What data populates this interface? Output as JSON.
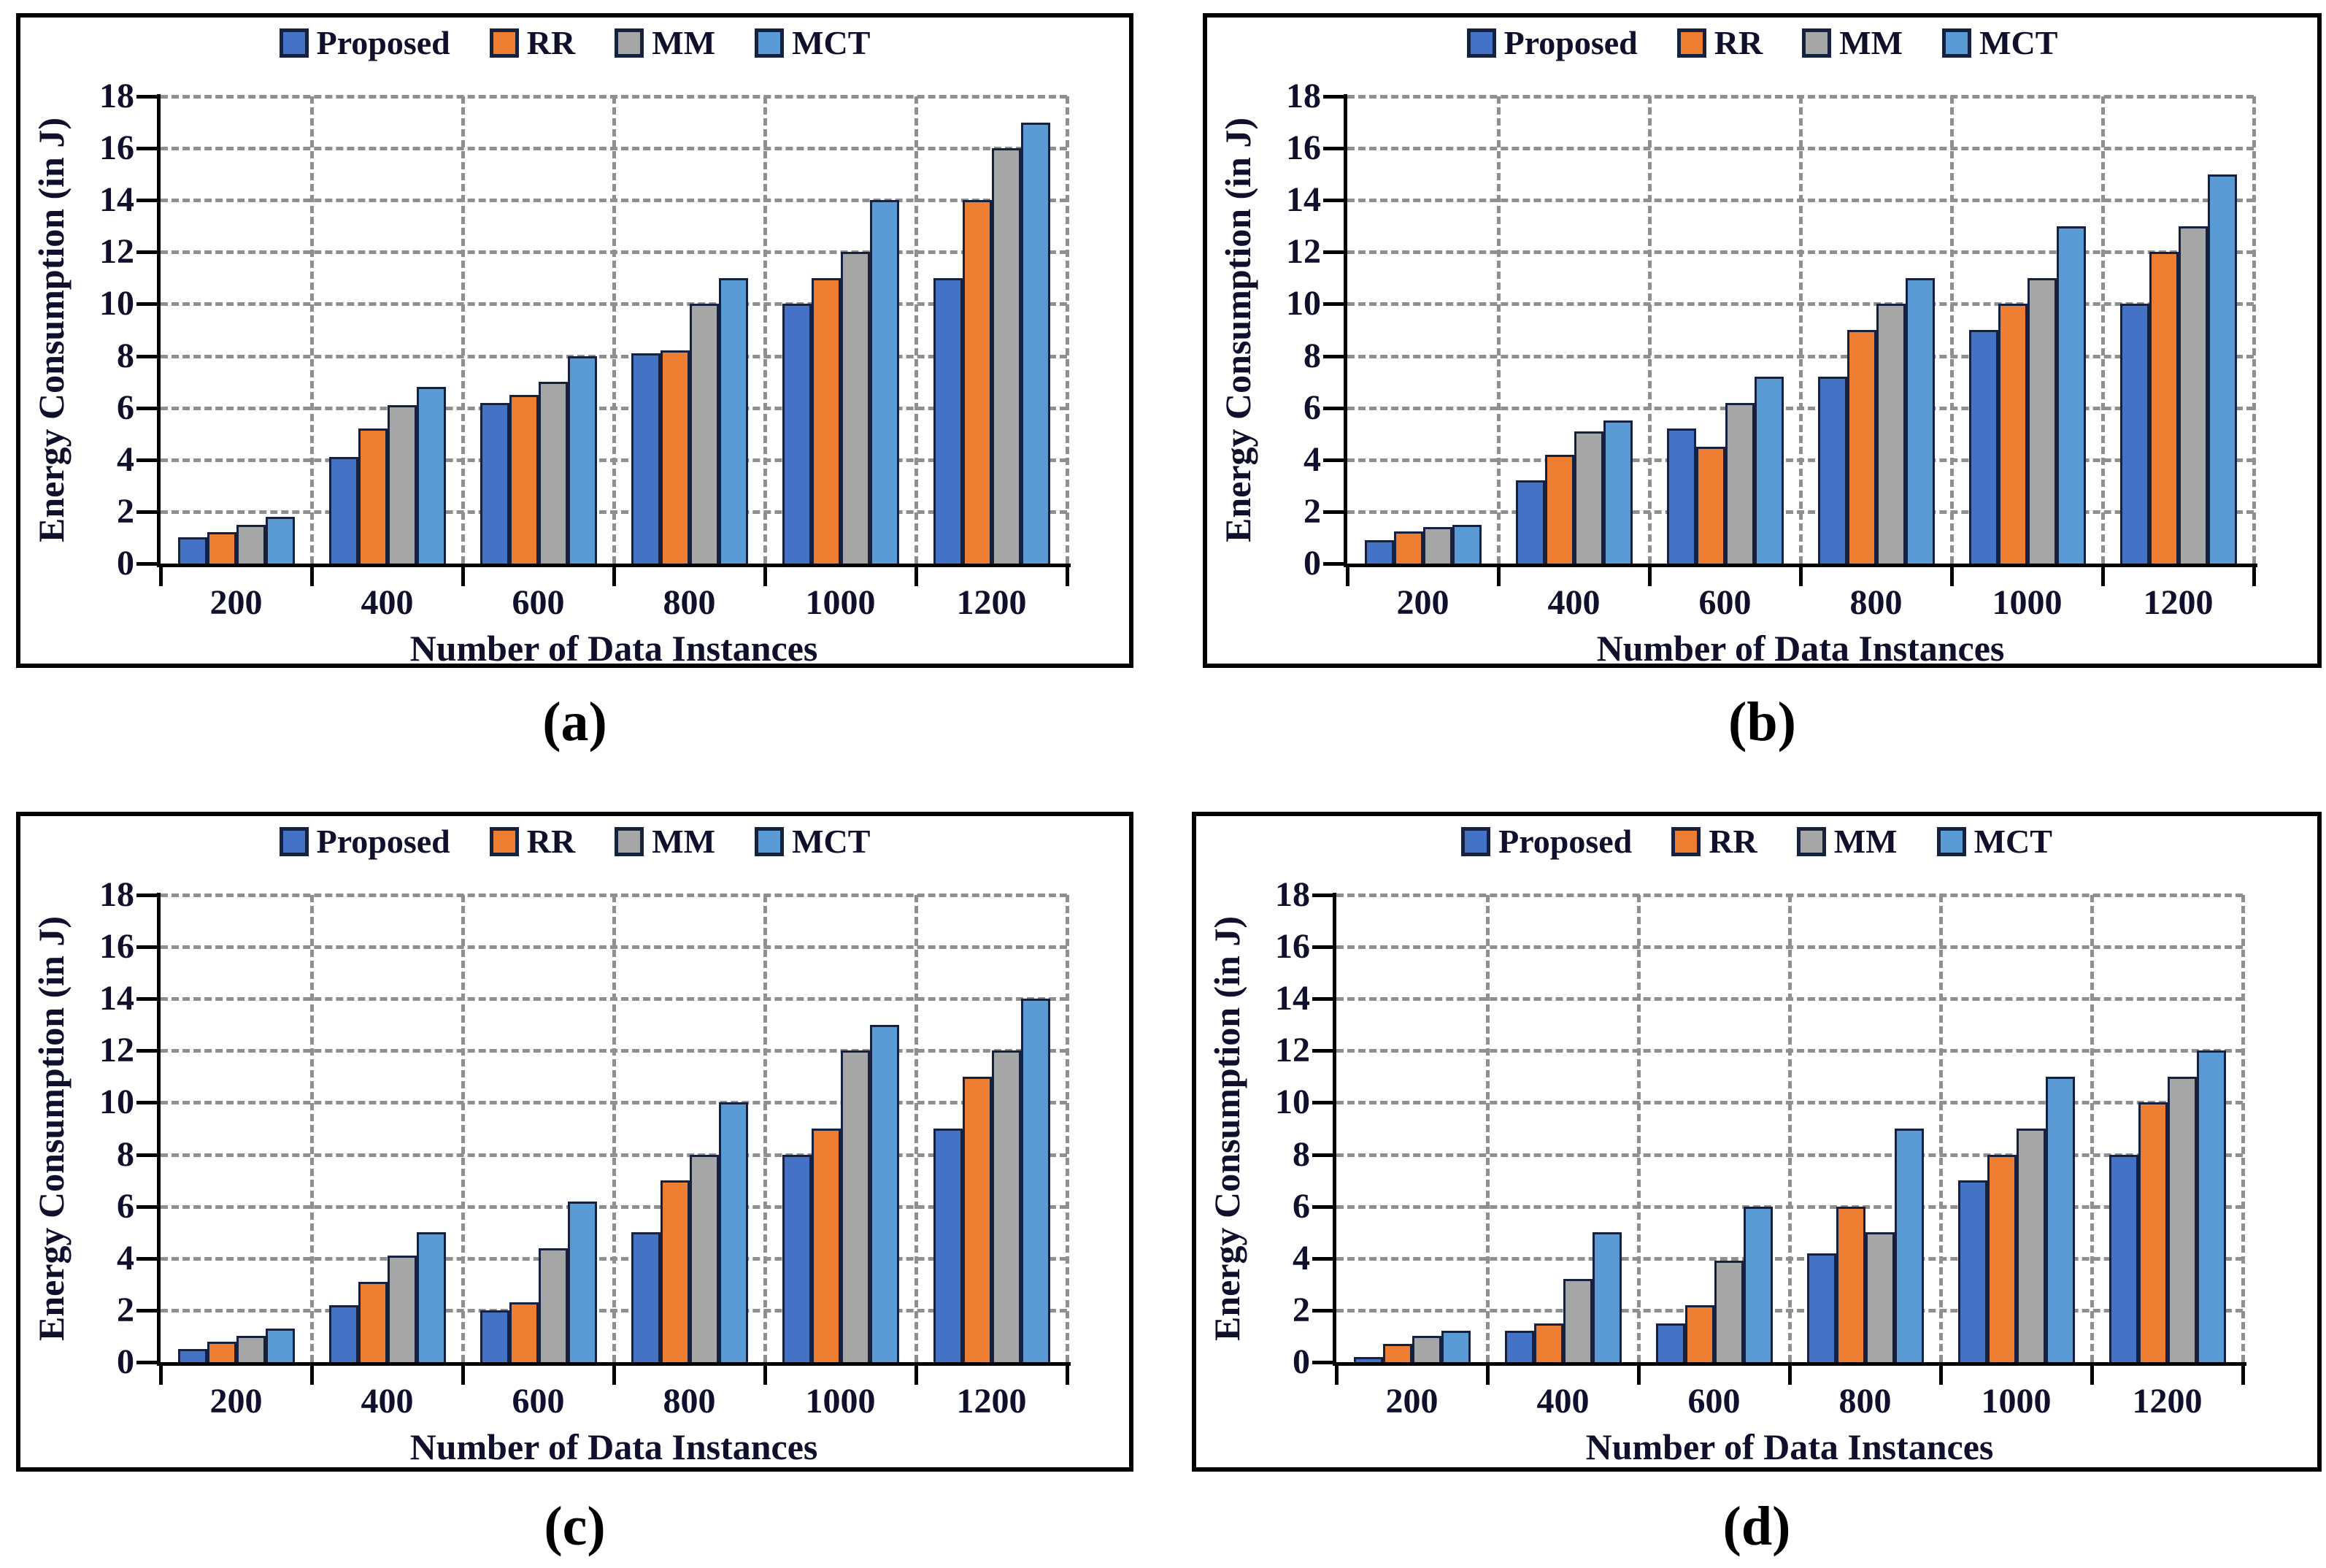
{
  "colors": {
    "proposed": "#4472C4",
    "rr": "#ED7D31",
    "mm": "#A6A6A6",
    "mct": "#5B9BD5",
    "bar_border": "#16213f",
    "gridline": "#8f8f8f",
    "axis": "#000000",
    "text": "#10102c"
  },
  "chart_data": [
    {
      "id": "a",
      "caption": "(a)",
      "type": "bar",
      "title": "",
      "xlabel": "Number of Data Instances",
      "ylabel": "Energy Consumption (in J)",
      "categories": [
        "200",
        "400",
        "600",
        "800",
        "1000",
        "1200"
      ],
      "yticks": [
        0,
        2,
        4,
        6,
        8,
        10,
        12,
        14,
        16,
        18
      ],
      "ylim": [
        0,
        18
      ],
      "grid": true,
      "legend_position": "top",
      "series": [
        {
          "name": "Proposed",
          "color": "#4472C4",
          "values": [
            1,
            4.1,
            6.2,
            8.1,
            10,
            11
          ]
        },
        {
          "name": "RR",
          "color": "#ED7D31",
          "values": [
            1.2,
            5.2,
            6.5,
            8.2,
            11,
            14
          ]
        },
        {
          "name": "MM",
          "color": "#A6A6A6",
          "values": [
            1.5,
            6.1,
            7,
            10,
            12,
            16
          ]
        },
        {
          "name": "MCT",
          "color": "#5B9BD5",
          "values": [
            1.8,
            6.8,
            8,
            11,
            14,
            17
          ]
        }
      ]
    },
    {
      "id": "b",
      "caption": "(b)",
      "type": "bar",
      "title": "",
      "xlabel": "Number of Data Instances",
      "ylabel": "Energy Consumption (in J)",
      "categories": [
        "200",
        "400",
        "600",
        "800",
        "1000",
        "1200"
      ],
      "yticks": [
        0,
        2,
        4,
        6,
        8,
        10,
        12,
        14,
        16,
        18
      ],
      "ylim": [
        0,
        18
      ],
      "grid": true,
      "legend_position": "top",
      "series": [
        {
          "name": "Proposed",
          "color": "#4472C4",
          "values": [
            0.9,
            3.2,
            5.2,
            7.2,
            9,
            10
          ]
        },
        {
          "name": "RR",
          "color": "#ED7D31",
          "values": [
            1.25,
            4.2,
            4.5,
            9,
            10,
            12
          ]
        },
        {
          "name": "MM",
          "color": "#A6A6A6",
          "values": [
            1.4,
            5.1,
            6.2,
            10,
            11,
            13
          ]
        },
        {
          "name": "MCT",
          "color": "#5B9BD5",
          "values": [
            1.5,
            5.5,
            7.2,
            11,
            13,
            15
          ]
        }
      ]
    },
    {
      "id": "c",
      "caption": "(c)",
      "type": "bar",
      "title": "",
      "xlabel": "Number of Data Instances",
      "ylabel": "Energy Consumption (in J)",
      "categories": [
        "200",
        "400",
        "600",
        "800",
        "1000",
        "1200"
      ],
      "yticks": [
        0,
        2,
        4,
        6,
        8,
        10,
        12,
        14,
        16,
        18
      ],
      "ylim": [
        0,
        18
      ],
      "grid": true,
      "legend_position": "top",
      "series": [
        {
          "name": "Proposed",
          "color": "#4472C4",
          "values": [
            0.5,
            2.2,
            2,
            5,
            8,
            9
          ]
        },
        {
          "name": "RR",
          "color": "#ED7D31",
          "values": [
            0.8,
            3.1,
            2.3,
            7,
            9,
            11
          ]
        },
        {
          "name": "MM",
          "color": "#A6A6A6",
          "values": [
            1,
            4.1,
            4.4,
            8,
            12,
            12
          ]
        },
        {
          "name": "MCT",
          "color": "#5B9BD5",
          "values": [
            1.3,
            5,
            6.2,
            10,
            13,
            14
          ]
        }
      ]
    },
    {
      "id": "d",
      "caption": "(d)",
      "type": "bar",
      "title": "",
      "xlabel": "Number of Data Instances",
      "ylabel": "Energy Consumption (in J)",
      "categories": [
        "200",
        "400",
        "600",
        "800",
        "1000",
        "1200"
      ],
      "yticks": [
        0,
        2,
        4,
        6,
        8,
        10,
        12,
        14,
        16,
        18
      ],
      "ylim": [
        0,
        18
      ],
      "grid": true,
      "legend_position": "top",
      "series": [
        {
          "name": "Proposed",
          "color": "#4472C4",
          "values": [
            0.2,
            1.2,
            1.5,
            4.2,
            7,
            8
          ]
        },
        {
          "name": "RR",
          "color": "#ED7D31",
          "values": [
            0.7,
            1.5,
            2.2,
            6,
            8,
            10
          ]
        },
        {
          "name": "MM",
          "color": "#A6A6A6",
          "values": [
            1,
            3.2,
            3.9,
            5,
            9,
            11
          ]
        },
        {
          "name": "MCT",
          "color": "#5B9BD5",
          "values": [
            1.2,
            5,
            6,
            9,
            11,
            12
          ]
        }
      ]
    }
  ]
}
